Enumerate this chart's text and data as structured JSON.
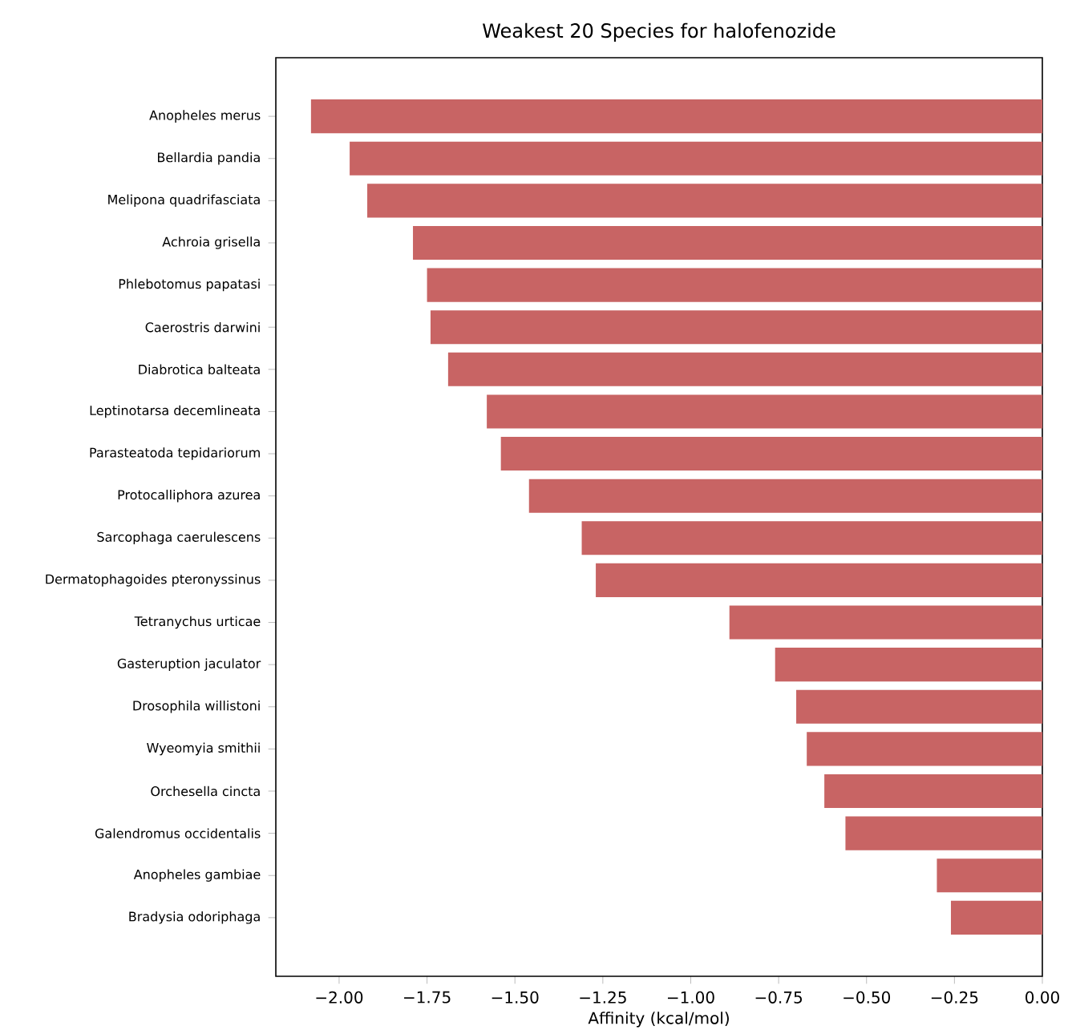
{
  "chart_data": {
    "type": "bar",
    "orientation": "horizontal",
    "title": "Weakest 20 Species for halofenozide",
    "xlabel": "Affinity (kcal/mol)",
    "categories": [
      "Anopheles merus",
      "Bellardia pandia",
      "Melipona quadrifasciata",
      "Achroia grisella",
      "Phlebotomus papatasi",
      "Caerostris darwini",
      "Diabrotica balteata",
      "Leptinotarsa decemlineata",
      "Parasteatoda tepidariorum",
      "Protocalliphora azurea",
      "Sarcophaga caerulescens",
      "Dermatophagoides pteronyssinus",
      "Tetranychus urticae",
      "Gasteruption jaculator",
      "Drosophila willistoni",
      "Wyeomyia smithii",
      "Orchesella cincta",
      "Galendromus occidentalis",
      "Anopheles gambiae",
      "Bradysia odoriphaga"
    ],
    "values": [
      -2.08,
      -1.97,
      -1.92,
      -1.79,
      -1.75,
      -1.74,
      -1.69,
      -1.58,
      -1.54,
      -1.46,
      -1.31,
      -1.27,
      -0.89,
      -0.76,
      -0.7,
      -0.67,
      -0.62,
      -0.56,
      -0.3,
      -0.26
    ],
    "color": "#c86464",
    "xlim": [
      -2.18,
      0
    ],
    "xticks": [
      {
        "value": -2,
        "label": "−2.00"
      },
      {
        "value": -1.75,
        "label": "−1.75"
      },
      {
        "value": -1.5,
        "label": "−1.50"
      },
      {
        "value": -1.25,
        "label": "−1.25"
      },
      {
        "value": -1,
        "label": "−1.00"
      },
      {
        "value": -0.75,
        "label": "−0.75"
      },
      {
        "value": -0.5,
        "label": "−0.50"
      },
      {
        "value": -0.25,
        "label": "−0.25"
      },
      {
        "value": 0,
        "label": "0.00"
      }
    ],
    "grid": false
  }
}
